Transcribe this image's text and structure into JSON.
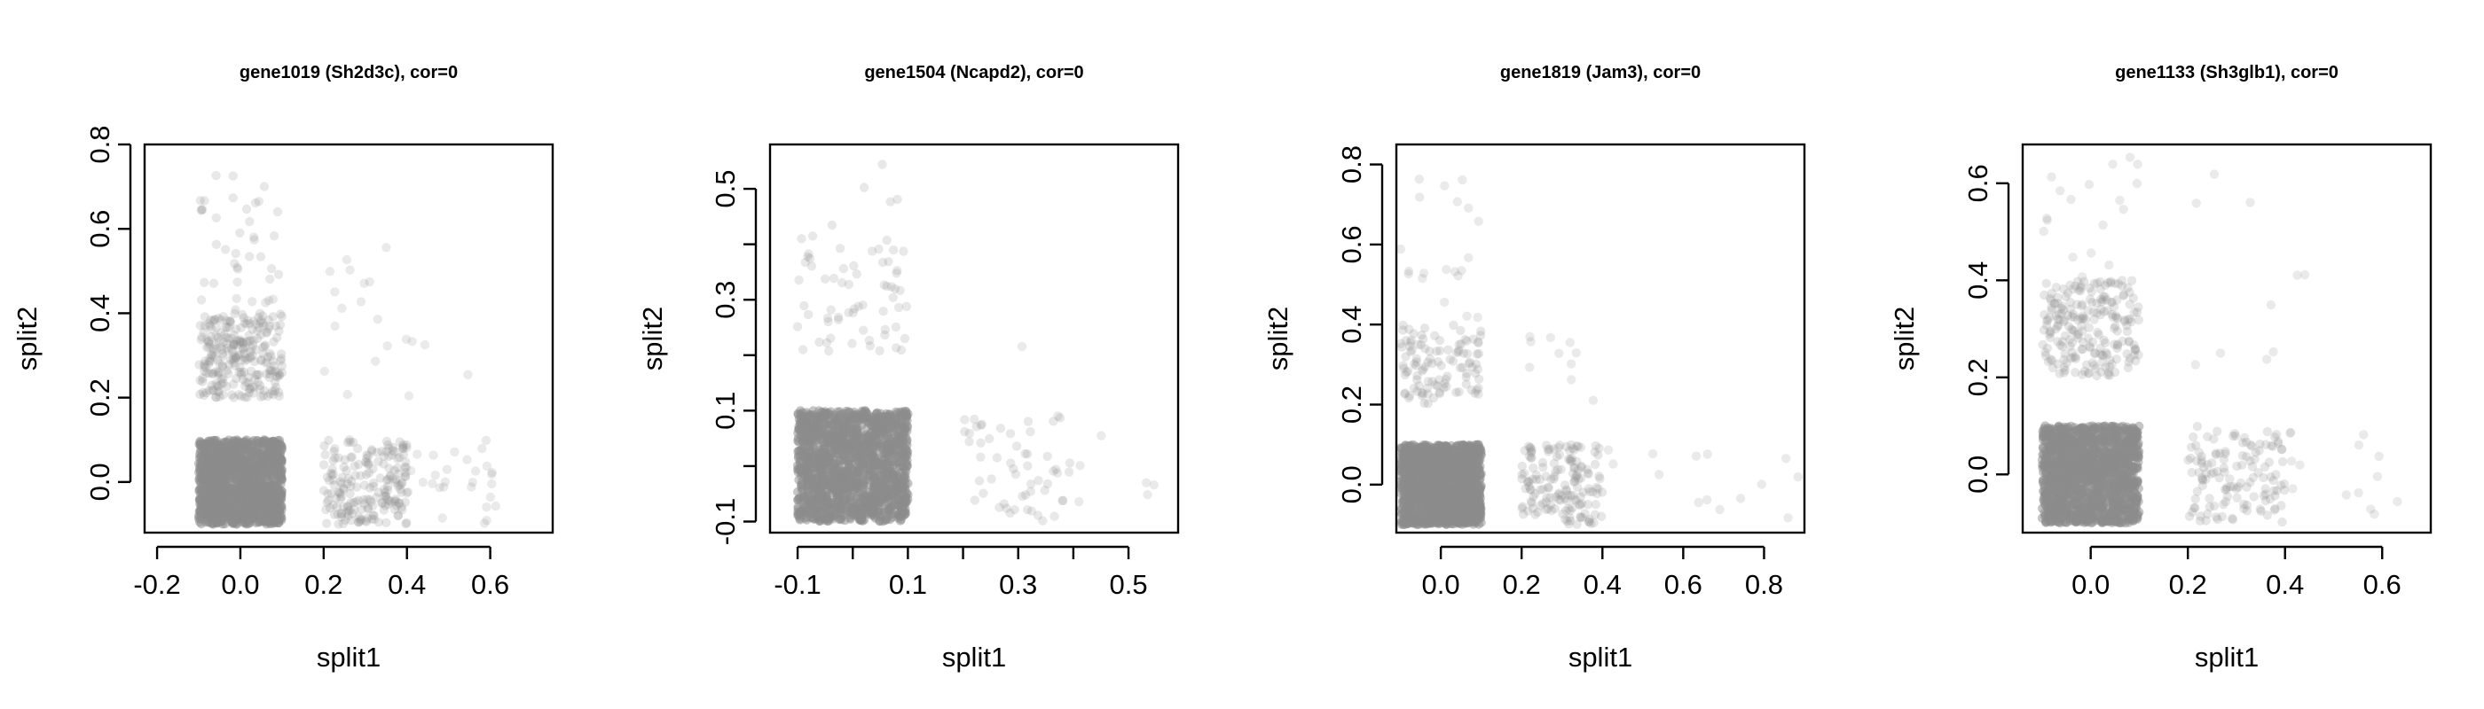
{
  "colors": {
    "point_gray": "#8c8c8c",
    "axis": "#000000"
  },
  "chart_data": [
    {
      "type": "scatter",
      "title": "gene1019 (Sh2d3c), cor=0",
      "xlabel": "split1",
      "ylabel": "split2",
      "xlim": [
        -0.23,
        0.75
      ],
      "ylim": [
        -0.12,
        0.8
      ],
      "xticks": [
        -0.2,
        0.0,
        0.2,
        0.4,
        0.6
      ],
      "xtick_labels": [
        "-0.2",
        "0.0",
        "0.2",
        "0.4",
        "0.6"
      ],
      "yticks": [
        0.0,
        0.2,
        0.4,
        0.6,
        0.8
      ],
      "ytick_labels": [
        "0.0",
        "0.2",
        "0.4",
        "0.6",
        "0.8"
      ],
      "clusters": [
        {
          "x": [
            -0.1,
            0.1
          ],
          "y": [
            -0.1,
            0.1
          ],
          "n": 1300,
          "alpha": 0.5
        },
        {
          "x": [
            -0.1,
            0.1
          ],
          "y": [
            0.2,
            0.4
          ],
          "n": 260,
          "alpha": 0.22
        },
        {
          "x": [
            -0.1,
            0.1
          ],
          "y": [
            0.4,
            0.77
          ],
          "n": 40,
          "alpha": 0.2
        },
        {
          "x": [
            0.2,
            0.4
          ],
          "y": [
            -0.1,
            0.1
          ],
          "n": 200,
          "alpha": 0.22
        },
        {
          "x": [
            0.2,
            0.4
          ],
          "y": [
            0.2,
            0.56
          ],
          "n": 16,
          "alpha": 0.18
        },
        {
          "x": [
            0.4,
            0.63
          ],
          "y": [
            -0.1,
            0.1
          ],
          "n": 28,
          "alpha": 0.18
        },
        {
          "x": [
            0.4,
            0.55
          ],
          "y": [
            0.2,
            0.37
          ],
          "n": 4,
          "alpha": 0.18
        }
      ]
    },
    {
      "type": "scatter",
      "title": "gene1504 (Ncapd2), cor=0",
      "xlabel": "split1",
      "ylabel": "split2",
      "xlim": [
        -0.15,
        0.59
      ],
      "ylim": [
        -0.12,
        0.58
      ],
      "xticks": [
        -0.1,
        0.1,
        0.3,
        0.5
      ],
      "xtick_labels": [
        "-0.1",
        "0.1",
        "0.3",
        "0.5"
      ],
      "minor_xticks": [
        0.0,
        0.2,
        0.4
      ],
      "yticks": [
        -0.1,
        0.1,
        0.3,
        0.5
      ],
      "ytick_labels": [
        "-0.1",
        "0.1",
        "0.3",
        "0.5"
      ],
      "minor_yticks": [
        0.0,
        0.2,
        0.4
      ],
      "clusters": [
        {
          "x": [
            -0.1,
            0.1
          ],
          "y": [
            -0.1,
            0.1
          ],
          "n": 1500,
          "alpha": 0.5
        },
        {
          "x": [
            -0.1,
            0.1
          ],
          "y": [
            0.2,
            0.4
          ],
          "n": 60,
          "alpha": 0.2
        },
        {
          "x": [
            -0.1,
            0.1
          ],
          "y": [
            0.4,
            0.55
          ],
          "n": 8,
          "alpha": 0.2
        },
        {
          "x": [
            0.2,
            0.4
          ],
          "y": [
            -0.1,
            0.1
          ],
          "n": 55,
          "alpha": 0.2
        },
        {
          "x": [
            0.4,
            0.55
          ],
          "y": [
            -0.1,
            0.09
          ],
          "n": 6,
          "alpha": 0.18
        },
        {
          "x": [
            0.3,
            0.32
          ],
          "y": [
            0.2,
            0.22
          ],
          "n": 1,
          "alpha": 0.18
        }
      ]
    },
    {
      "type": "scatter",
      "title": "gene1819 (Jam3), cor=0",
      "xlabel": "split1",
      "ylabel": "split2",
      "xlim": [
        -0.11,
        0.9
      ],
      "ylim": [
        -0.12,
        0.85
      ],
      "xticks": [
        0.0,
        0.2,
        0.4,
        0.6,
        0.8
      ],
      "xtick_labels": [
        "0.0",
        "0.2",
        "0.4",
        "0.6",
        "0.8"
      ],
      "yticks": [
        0.0,
        0.2,
        0.4,
        0.6,
        0.8
      ],
      "ytick_labels": [
        "0.0",
        "0.2",
        "0.4",
        "0.6",
        "0.8"
      ],
      "clusters": [
        {
          "x": [
            -0.1,
            0.1
          ],
          "y": [
            -0.1,
            0.1
          ],
          "n": 1500,
          "alpha": 0.5
        },
        {
          "x": [
            -0.1,
            0.1
          ],
          "y": [
            0.2,
            0.4
          ],
          "n": 110,
          "alpha": 0.22
        },
        {
          "x": [
            -0.1,
            0.1
          ],
          "y": [
            0.4,
            0.8
          ],
          "n": 20,
          "alpha": 0.18
        },
        {
          "x": [
            0.2,
            0.4
          ],
          "y": [
            -0.1,
            0.1
          ],
          "n": 160,
          "alpha": 0.22
        },
        {
          "x": [
            0.2,
            0.4
          ],
          "y": [
            0.2,
            0.37
          ],
          "n": 10,
          "alpha": 0.18
        },
        {
          "x": [
            0.4,
            0.9
          ],
          "y": [
            -0.1,
            0.1
          ],
          "n": 14,
          "alpha": 0.18
        }
      ]
    },
    {
      "type": "scatter",
      "title": "gene1133 (Sh3glb1), cor=0",
      "xlabel": "split1",
      "ylabel": "split2",
      "xlim": [
        -0.14,
        0.7
      ],
      "ylim": [
        -0.12,
        0.68
      ],
      "xticks": [
        0.0,
        0.2,
        0.4,
        0.6
      ],
      "xtick_labels": [
        "0.0",
        "0.2",
        "0.4",
        "0.6"
      ],
      "yticks": [
        0.0,
        0.2,
        0.4,
        0.6
      ],
      "ytick_labels": [
        "0.0",
        "0.2",
        "0.4",
        "0.6"
      ],
      "clusters": [
        {
          "x": [
            -0.1,
            0.1
          ],
          "y": [
            -0.1,
            0.1
          ],
          "n": 1400,
          "alpha": 0.5
        },
        {
          "x": [
            -0.1,
            0.1
          ],
          "y": [
            0.2,
            0.4
          ],
          "n": 220,
          "alpha": 0.22
        },
        {
          "x": [
            -0.1,
            0.1
          ],
          "y": [
            0.4,
            0.66
          ],
          "n": 18,
          "alpha": 0.18
        },
        {
          "x": [
            0.2,
            0.4
          ],
          "y": [
            -0.1,
            0.1
          ],
          "n": 130,
          "alpha": 0.22
        },
        {
          "x": [
            0.2,
            0.45
          ],
          "y": [
            0.2,
            0.65
          ],
          "n": 10,
          "alpha": 0.18
        },
        {
          "x": [
            0.4,
            0.66
          ],
          "y": [
            -0.1,
            0.1
          ],
          "n": 14,
          "alpha": 0.18
        }
      ]
    }
  ]
}
